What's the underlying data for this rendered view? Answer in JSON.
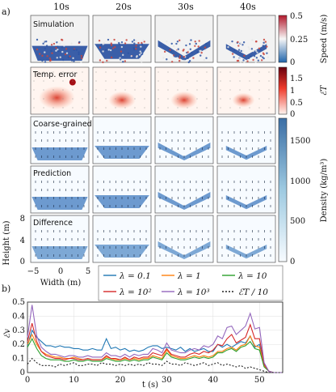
{
  "figure": {
    "part_a_label": "a)",
    "part_b_label": "b)",
    "time_columns": [
      "10s",
      "20s",
      "30s",
      "40s"
    ],
    "rows": [
      {
        "label": "Simulation",
        "kind": "particles"
      },
      {
        "label": "Temp. error",
        "kind": "error"
      },
      {
        "label": "Coarse-grained",
        "kind": "density"
      },
      {
        "label": "Prediction",
        "kind": "density"
      },
      {
        "label": "Difference",
        "kind": "difference"
      }
    ],
    "speed_colorbar": {
      "label": "Speed (m/s)",
      "ticks": [
        "0.5",
        "0.25",
        "0"
      ],
      "colors": [
        "#b2182b",
        "#f7f7f7",
        "#2166ac"
      ]
    },
    "error_colorbar": {
      "label": "ℰT",
      "ticks": [
        "1.5",
        "1",
        "0.5",
        "0"
      ],
      "colors": [
        "#67000d",
        "#ef3b2c",
        "#fff5f0"
      ]
    },
    "density_colorbar": {
      "label": "Density (kg/m³)",
      "ticks": [
        "1500",
        "1000",
        "500",
        "0"
      ],
      "colors": [
        "#3b6ea5",
        "#9ecae1",
        "#f7fbff"
      ]
    },
    "axes": {
      "ylabel": "Height (m)",
      "xlabel": "Width (m)",
      "yticks": [
        "8",
        "4",
        "0"
      ],
      "xticks": [
        "−5",
        "0",
        "5"
      ]
    }
  },
  "chart_data": {
    "type": "line",
    "ylabel": "ℰv",
    "xlabel": "t (s)",
    "xlim": [
      0,
      55
    ],
    "ylim": [
      0,
      0.5
    ],
    "xticks": [
      "0",
      "10",
      "20",
      "30",
      "40",
      "50"
    ],
    "yticks": [
      "0",
      "0.1",
      "0.2",
      "0.3",
      "0.4",
      "0.5"
    ],
    "legend_position": "top",
    "x": [
      0,
      1,
      2,
      3,
      4,
      5,
      6,
      7,
      8,
      9,
      10,
      11,
      12,
      13,
      14,
      15,
      16,
      17,
      18,
      19,
      20,
      21,
      22,
      23,
      24,
      25,
      26,
      27,
      28,
      29,
      30,
      31,
      32,
      33,
      34,
      35,
      36,
      37,
      38,
      39,
      40,
      41,
      42,
      43,
      44,
      45,
      46,
      47,
      48,
      49,
      50,
      51,
      52,
      53,
      54,
      55
    ],
    "series": [
      {
        "name": "λ = 0.1",
        "color": "#1f77b4",
        "dash": "",
        "values": [
          0.19,
          0.3,
          0.25,
          0.22,
          0.19,
          0.19,
          0.18,
          0.19,
          0.18,
          0.18,
          0.17,
          0.17,
          0.16,
          0.16,
          0.17,
          0.16,
          0.16,
          0.24,
          0.17,
          0.18,
          0.16,
          0.17,
          0.15,
          0.16,
          0.15,
          0.16,
          0.18,
          0.19,
          0.19,
          0.17,
          0.18,
          0.17,
          0.16,
          0.18,
          0.15,
          0.17,
          0.15,
          0.16,
          0.17,
          0.15,
          0.15,
          0.2,
          0.18,
          0.2,
          0.18,
          0.2,
          0.22,
          0.21,
          0.26,
          0.18,
          0.2,
          0.06,
          0.01,
          0.0,
          0.0,
          0.0
        ]
      },
      {
        "name": "λ = 1",
        "color": "#ff7f0e",
        "dash": "",
        "values": [
          0.2,
          0.27,
          0.2,
          0.15,
          0.13,
          0.12,
          0.11,
          0.11,
          0.1,
          0.1,
          0.11,
          0.1,
          0.09,
          0.1,
          0.09,
          0.09,
          0.09,
          0.11,
          0.1,
          0.09,
          0.09,
          0.1,
          0.09,
          0.1,
          0.09,
          0.1,
          0.1,
          0.12,
          0.11,
          0.1,
          0.16,
          0.12,
          0.11,
          0.1,
          0.1,
          0.11,
          0.12,
          0.11,
          0.12,
          0.11,
          0.12,
          0.15,
          0.15,
          0.17,
          0.18,
          0.16,
          0.19,
          0.2,
          0.26,
          0.19,
          0.18,
          0.05,
          0.01,
          0.0,
          0.0,
          0.0
        ]
      },
      {
        "name": "λ = 10",
        "color": "#2ca02c",
        "dash": "",
        "values": [
          0.18,
          0.24,
          0.17,
          0.12,
          0.1,
          0.09,
          0.09,
          0.09,
          0.08,
          0.08,
          0.09,
          0.08,
          0.08,
          0.09,
          0.08,
          0.08,
          0.08,
          0.1,
          0.09,
          0.08,
          0.08,
          0.09,
          0.08,
          0.09,
          0.08,
          0.09,
          0.09,
          0.11,
          0.1,
          0.09,
          0.14,
          0.11,
          0.1,
          0.09,
          0.09,
          0.1,
          0.11,
          0.1,
          0.11,
          0.1,
          0.11,
          0.14,
          0.14,
          0.16,
          0.17,
          0.15,
          0.18,
          0.19,
          0.22,
          0.17,
          0.16,
          0.04,
          0.01,
          0.0,
          0.0,
          0.0
        ]
      },
      {
        "name": "λ = 10²",
        "color": "#d62728",
        "dash": "",
        "values": [
          0.22,
          0.35,
          0.22,
          0.15,
          0.12,
          0.11,
          0.1,
          0.1,
          0.09,
          0.1,
          0.1,
          0.09,
          0.09,
          0.1,
          0.09,
          0.09,
          0.09,
          0.12,
          0.1,
          0.1,
          0.09,
          0.11,
          0.09,
          0.11,
          0.1,
          0.11,
          0.11,
          0.14,
          0.13,
          0.12,
          0.17,
          0.13,
          0.12,
          0.11,
          0.11,
          0.13,
          0.14,
          0.13,
          0.15,
          0.14,
          0.16,
          0.2,
          0.19,
          0.24,
          0.27,
          0.21,
          0.23,
          0.25,
          0.34,
          0.24,
          0.24,
          0.06,
          0.01,
          0.0,
          0.0,
          0.0
        ]
      },
      {
        "name": "λ = 10³",
        "color": "#9467bd",
        "dash": "",
        "values": [
          0.25,
          0.48,
          0.26,
          0.18,
          0.15,
          0.13,
          0.13,
          0.12,
          0.11,
          0.12,
          0.12,
          0.11,
          0.11,
          0.12,
          0.11,
          0.11,
          0.11,
          0.14,
          0.12,
          0.12,
          0.11,
          0.13,
          0.11,
          0.13,
          0.12,
          0.13,
          0.13,
          0.17,
          0.16,
          0.14,
          0.21,
          0.16,
          0.15,
          0.14,
          0.14,
          0.16,
          0.17,
          0.16,
          0.19,
          0.18,
          0.2,
          0.26,
          0.24,
          0.32,
          0.33,
          0.27,
          0.3,
          0.33,
          0.42,
          0.31,
          0.32,
          0.07,
          0.01,
          0.0,
          0.0,
          0.0
        ]
      },
      {
        "name": "ℰT / 10",
        "color": "#222222",
        "dash": "2,2",
        "values": [
          0.06,
          0.1,
          0.07,
          0.05,
          0.05,
          0.05,
          0.04,
          0.06,
          0.05,
          0.06,
          0.07,
          0.05,
          0.05,
          0.06,
          0.06,
          0.05,
          0.07,
          0.06,
          0.06,
          0.05,
          0.06,
          0.05,
          0.06,
          0.05,
          0.06,
          0.05,
          0.07,
          0.06,
          0.06,
          0.05,
          0.08,
          0.06,
          0.06,
          0.05,
          0.07,
          0.06,
          0.05,
          0.06,
          0.07,
          0.05,
          0.06,
          0.07,
          0.05,
          0.06,
          0.05,
          0.04,
          0.05,
          0.03,
          0.04,
          0.03,
          0.02,
          0.01,
          0.0,
          0.0,
          0.0,
          0.0
        ]
      }
    ]
  }
}
